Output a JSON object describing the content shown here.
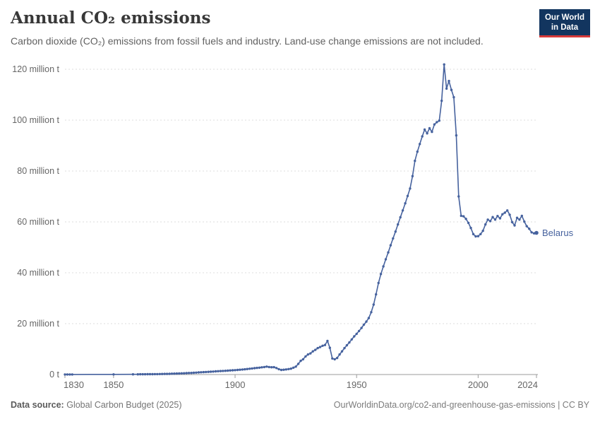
{
  "header": {
    "title": "Annual CO₂ emissions",
    "subtitle": "Carbon dioxide (CO₂) emissions from fossil fuels and industry. Land-use change emissions are not included.",
    "logo": {
      "line1": "Our World",
      "line2": "in Data",
      "bg_color": "#12355f",
      "accent_color": "#d73a3a"
    }
  },
  "chart_data": {
    "type": "line",
    "title": "Annual CO₂ emissions",
    "entity": "Belarus",
    "unit": "million tonnes of CO₂",
    "grid": true,
    "legend_position": "end-of-line label",
    "line_color": "#46629e",
    "grid_color": "#dcdcdc",
    "axis_color": "#9b9b9b",
    "tick_label_color": "#666666",
    "x": {
      "min": 1830,
      "max": 2024,
      "ticks": [
        1830,
        1850,
        1900,
        1950,
        2000,
        2024
      ]
    },
    "y": {
      "min": 0,
      "max": 120,
      "ticks": [
        0,
        20,
        40,
        60,
        80,
        100,
        120
      ],
      "tick_labels": [
        "0 t",
        "20 million t",
        "40 million t",
        "60 million t",
        "80 million t",
        "100 million t",
        "120 million t"
      ]
    },
    "series": [
      {
        "name": "Belarus",
        "color": "#46629e",
        "points": [
          [
            1830,
            0.02
          ],
          [
            1831,
            0.02
          ],
          [
            1832,
            0.03
          ],
          [
            1833,
            0.03
          ],
          [
            1850,
            0.05
          ],
          [
            1858,
            0.07
          ],
          [
            1860,
            0.09
          ],
          [
            1861,
            0.1
          ],
          [
            1862,
            0.11
          ],
          [
            1863,
            0.12
          ],
          [
            1864,
            0.13
          ],
          [
            1865,
            0.14
          ],
          [
            1866,
            0.15
          ],
          [
            1867,
            0.16
          ],
          [
            1868,
            0.18
          ],
          [
            1869,
            0.2
          ],
          [
            1870,
            0.22
          ],
          [
            1871,
            0.24
          ],
          [
            1872,
            0.26
          ],
          [
            1873,
            0.29
          ],
          [
            1874,
            0.32
          ],
          [
            1875,
            0.35
          ],
          [
            1876,
            0.38
          ],
          [
            1877,
            0.42
          ],
          [
            1878,
            0.46
          ],
          [
            1879,
            0.5
          ],
          [
            1880,
            0.55
          ],
          [
            1881,
            0.6
          ],
          [
            1882,
            0.65
          ],
          [
            1883,
            0.7
          ],
          [
            1884,
            0.76
          ],
          [
            1885,
            0.82
          ],
          [
            1886,
            0.88
          ],
          [
            1887,
            0.94
          ],
          [
            1888,
            1.0
          ],
          [
            1889,
            1.06
          ],
          [
            1890,
            1.12
          ],
          [
            1891,
            1.18
          ],
          [
            1892,
            1.24
          ],
          [
            1893,
            1.3
          ],
          [
            1894,
            1.36
          ],
          [
            1895,
            1.42
          ],
          [
            1896,
            1.48
          ],
          [
            1897,
            1.54
          ],
          [
            1898,
            1.6
          ],
          [
            1899,
            1.66
          ],
          [
            1900,
            1.72
          ],
          [
            1901,
            1.8
          ],
          [
            1902,
            1.88
          ],
          [
            1903,
            1.97
          ],
          [
            1904,
            2.06
          ],
          [
            1905,
            2.16
          ],
          [
            1906,
            2.27
          ],
          [
            1907,
            2.38
          ],
          [
            1908,
            2.5
          ],
          [
            1909,
            2.6
          ],
          [
            1910,
            2.7
          ],
          [
            1911,
            2.82
          ],
          [
            1912,
            2.95
          ],
          [
            1913,
            3.1
          ],
          [
            1914,
            2.95
          ],
          [
            1915,
            2.85
          ],
          [
            1916,
            2.9
          ],
          [
            1917,
            2.55
          ],
          [
            1918,
            2.1
          ],
          [
            1919,
            1.8
          ],
          [
            1920,
            1.9
          ],
          [
            1921,
            2.0
          ],
          [
            1922,
            2.15
          ],
          [
            1923,
            2.3
          ],
          [
            1924,
            2.7
          ],
          [
            1925,
            3.1
          ],
          [
            1926,
            4.2
          ],
          [
            1927,
            5.4
          ],
          [
            1928,
            6.0
          ],
          [
            1929,
            7.1
          ],
          [
            1930,
            7.9
          ],
          [
            1931,
            8.3
          ],
          [
            1932,
            9.1
          ],
          [
            1933,
            9.7
          ],
          [
            1934,
            10.4
          ],
          [
            1935,
            10.8
          ],
          [
            1936,
            11.3
          ],
          [
            1937,
            11.6
          ],
          [
            1938,
            13.2
          ],
          [
            1939,
            10.5
          ],
          [
            1940,
            6.3
          ],
          [
            1941,
            6.0
          ],
          [
            1942,
            6.5
          ],
          [
            1943,
            7.9
          ],
          [
            1944,
            9.1
          ],
          [
            1945,
            10.4
          ],
          [
            1946,
            11.5
          ],
          [
            1947,
            12.6
          ],
          [
            1948,
            13.8
          ],
          [
            1949,
            15.0
          ],
          [
            1950,
            16.0
          ],
          [
            1951,
            17.1
          ],
          [
            1952,
            18.3
          ],
          [
            1953,
            19.6
          ],
          [
            1954,
            20.8
          ],
          [
            1955,
            22.2
          ],
          [
            1956,
            24.5
          ],
          [
            1957,
            27.5
          ],
          [
            1958,
            31.5
          ],
          [
            1959,
            36.0
          ],
          [
            1960,
            39.5
          ],
          [
            1961,
            42.5
          ],
          [
            1962,
            45.3
          ],
          [
            1963,
            48.0
          ],
          [
            1964,
            50.8
          ],
          [
            1965,
            53.5
          ],
          [
            1966,
            56.2
          ],
          [
            1967,
            59.0
          ],
          [
            1968,
            61.8
          ],
          [
            1969,
            64.5
          ],
          [
            1970,
            67.3
          ],
          [
            1971,
            70.2
          ],
          [
            1972,
            73.1
          ],
          [
            1973,
            78.0
          ],
          [
            1974,
            84.0
          ],
          [
            1975,
            87.6
          ],
          [
            1976,
            90.6
          ],
          [
            1977,
            93.6
          ],
          [
            1978,
            96.3
          ],
          [
            1979,
            94.8
          ],
          [
            1980,
            96.8
          ],
          [
            1981,
            95.4
          ],
          [
            1982,
            98.3
          ],
          [
            1983,
            99.2
          ],
          [
            1984,
            99.8
          ],
          [
            1985,
            107.6
          ],
          [
            1986,
            121.9
          ],
          [
            1987,
            112.4
          ],
          [
            1988,
            115.4
          ],
          [
            1989,
            111.9
          ],
          [
            1990,
            109.0
          ],
          [
            1991,
            94.0
          ],
          [
            1992,
            70.0
          ],
          [
            1993,
            62.4
          ],
          [
            1994,
            62.2
          ],
          [
            1995,
            61.2
          ],
          [
            1996,
            59.6
          ],
          [
            1997,
            57.6
          ],
          [
            1998,
            55.2
          ],
          [
            1999,
            54.3
          ],
          [
            2000,
            54.4
          ],
          [
            2001,
            55.2
          ],
          [
            2002,
            56.5
          ],
          [
            2003,
            59.0
          ],
          [
            2004,
            60.9
          ],
          [
            2005,
            60.3
          ],
          [
            2006,
            61.9
          ],
          [
            2007,
            60.9
          ],
          [
            2008,
            62.3
          ],
          [
            2009,
            61.4
          ],
          [
            2010,
            63.0
          ],
          [
            2011,
            63.6
          ],
          [
            2012,
            64.5
          ],
          [
            2013,
            62.8
          ],
          [
            2014,
            59.9
          ],
          [
            2015,
            58.6
          ],
          [
            2016,
            61.6
          ],
          [
            2017,
            60.9
          ],
          [
            2018,
            62.4
          ],
          [
            2019,
            60.1
          ],
          [
            2020,
            58.3
          ],
          [
            2021,
            57.3
          ],
          [
            2022,
            55.9
          ],
          [
            2023,
            55.5
          ],
          [
            2024,
            55.7
          ]
        ]
      }
    ]
  },
  "footer": {
    "source_label": "Data source:",
    "source_value": "Global Carbon Budget (2025)",
    "attribution": "OurWorldinData.org/co2-and-greenhouse-gas-emissions | CC BY"
  }
}
